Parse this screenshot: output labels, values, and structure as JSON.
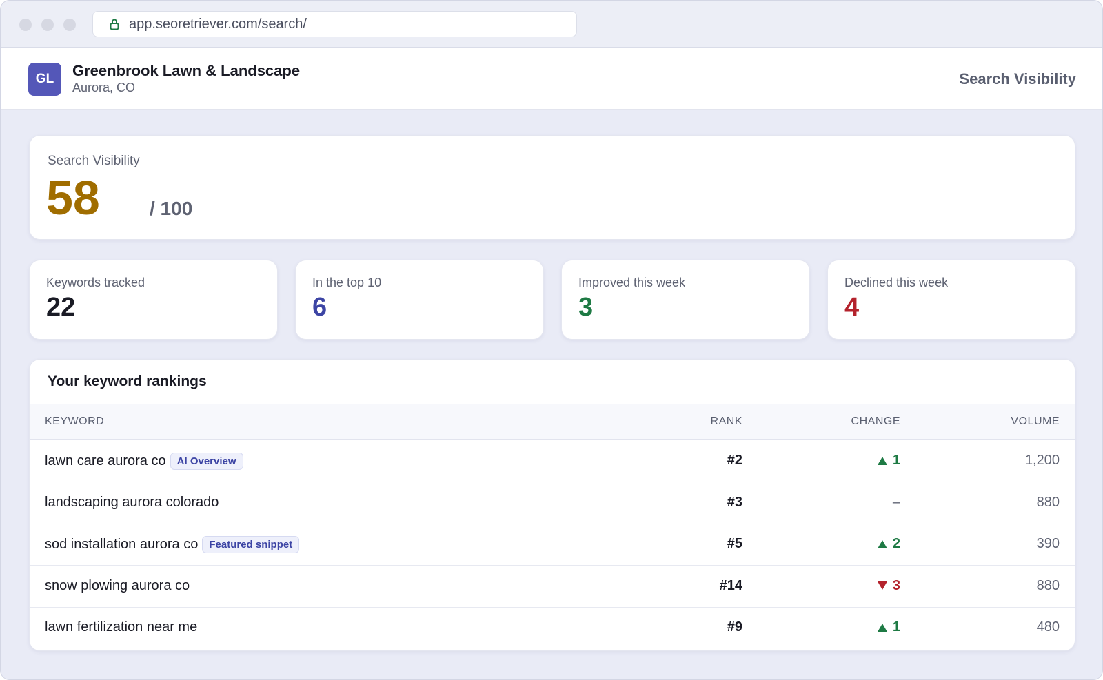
{
  "browser": {
    "url": "app.seoretriever.com/search/"
  },
  "business": {
    "initials": "GL",
    "name": "Greenbrook Lawn & Landscape",
    "location": "Aurora, CO"
  },
  "page_label": "Search Visibility",
  "visibility": {
    "label": "Search Visibility",
    "score": "58",
    "max": "/ 100",
    "score_color": "#a06d00"
  },
  "stats": [
    {
      "label": "Keywords tracked",
      "value": "22",
      "color": "#1a1b25"
    },
    {
      "label": "In the top 10",
      "value": "6",
      "color": "#3c44a4"
    },
    {
      "label": "Improved this week",
      "value": "3",
      "color": "#1e7a44"
    },
    {
      "label": "Declined this week",
      "value": "4",
      "color": "#b4222c"
    }
  ],
  "rankings": {
    "title": "Your keyword rankings",
    "columns": {
      "keyword": "KEYWORD",
      "rank": "RANK",
      "change": "CHANGE",
      "volume": "VOLUME"
    },
    "rows": [
      {
        "keyword": "lawn care aurora co",
        "badge": "AI Overview",
        "rank": "#2",
        "change": "1",
        "direction": "up",
        "volume": "1,200"
      },
      {
        "keyword": "landscaping aurora colorado",
        "badge": "",
        "rank": "#3",
        "change": "–",
        "direction": "none",
        "volume": "880"
      },
      {
        "keyword": "sod installation aurora co",
        "badge": "Featured snippet",
        "rank": "#5",
        "change": "2",
        "direction": "up",
        "volume": "390"
      },
      {
        "keyword": "snow plowing aurora co",
        "badge": "",
        "rank": "#14",
        "change": "3",
        "direction": "down",
        "volume": "880"
      },
      {
        "keyword": "lawn fertilization near me",
        "badge": "",
        "rank": "#9",
        "change": "1",
        "direction": "up",
        "volume": "480"
      }
    ]
  },
  "colors": {
    "up": "#1e7a44",
    "down": "#b4222c",
    "neutral": "#5e6272",
    "accent": "#5457b8"
  }
}
